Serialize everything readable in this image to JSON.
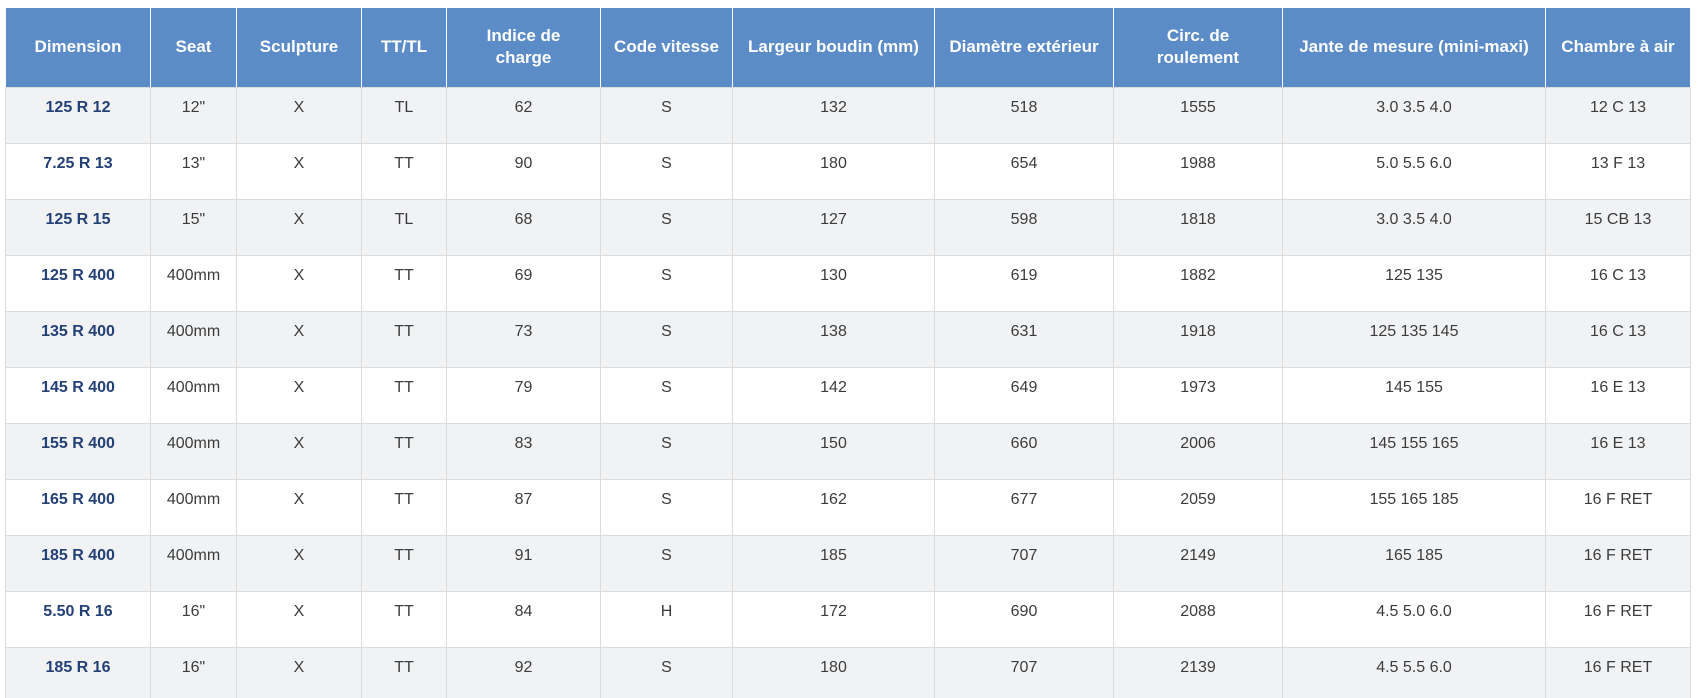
{
  "table": {
    "columns": [
      "Dimension",
      "Seat",
      "Sculpture",
      "TT/TL",
      "Indice de charge",
      "Code vitesse",
      "Largeur boudin (mm)",
      "Diamètre extérieur",
      "Circ. de roulement",
      "Jante de mesure (mini-maxi)",
      "Chambre à air"
    ],
    "rows": [
      [
        "125 R 12",
        "12\"",
        "X",
        "TL",
        "62",
        "S",
        "132",
        "518",
        "1555",
        "3.0 3.5 4.0",
        "12 C 13"
      ],
      [
        "7.25 R 13",
        "13\"",
        "X",
        "TT",
        "90",
        "S",
        "180",
        "654",
        "1988",
        "5.0 5.5 6.0",
        "13 F 13"
      ],
      [
        "125 R 15",
        "15\"",
        "X",
        "TL",
        "68",
        "S",
        "127",
        "598",
        "1818",
        "3.0 3.5 4.0",
        "15 CB 13"
      ],
      [
        "125 R 400",
        "400mm",
        "X",
        "TT",
        "69",
        "S",
        "130",
        "619",
        "1882",
        "125 135",
        "16 C 13"
      ],
      [
        "135 R 400",
        "400mm",
        "X",
        "TT",
        "73",
        "S",
        "138",
        "631",
        "1918",
        "125 135 145",
        "16 C 13"
      ],
      [
        "145 R 400",
        "400mm",
        "X",
        "TT",
        "79",
        "S",
        "142",
        "649",
        "1973",
        "145 155",
        "16 E 13"
      ],
      [
        "155 R 400",
        "400mm",
        "X",
        "TT",
        "83",
        "S",
        "150",
        "660",
        "2006",
        "145 155 165",
        "16 E 13"
      ],
      [
        "165 R 400",
        "400mm",
        "X",
        "TT",
        "87",
        "S",
        "162",
        "677",
        "2059",
        "155 165 185",
        "16 F RET"
      ],
      [
        "185 R 400",
        "400mm",
        "X",
        "TT",
        "91",
        "S",
        "185",
        "707",
        "2149",
        "165 185",
        "16 F RET"
      ],
      [
        "5.50 R 16",
        "16\"",
        "X",
        "TT",
        "84",
        "H",
        "172",
        "690",
        "2088",
        "4.5 5.0 6.0",
        "16 F RET"
      ],
      [
        "185 R 16",
        "16\"",
        "X",
        "TT",
        "92",
        "S",
        "180",
        "707",
        "2139",
        "4.5 5.5 6.0",
        "16 F RET"
      ]
    ],
    "colors": {
      "header_bg": "#5b8cc8",
      "header_text": "#ffffff",
      "stripe_bg": "#f1f2f4",
      "row_bg": "#ffffff",
      "border": "#dcdcdc",
      "dimension_link": "#234077",
      "cell_text": "#3c3c3c"
    }
  }
}
